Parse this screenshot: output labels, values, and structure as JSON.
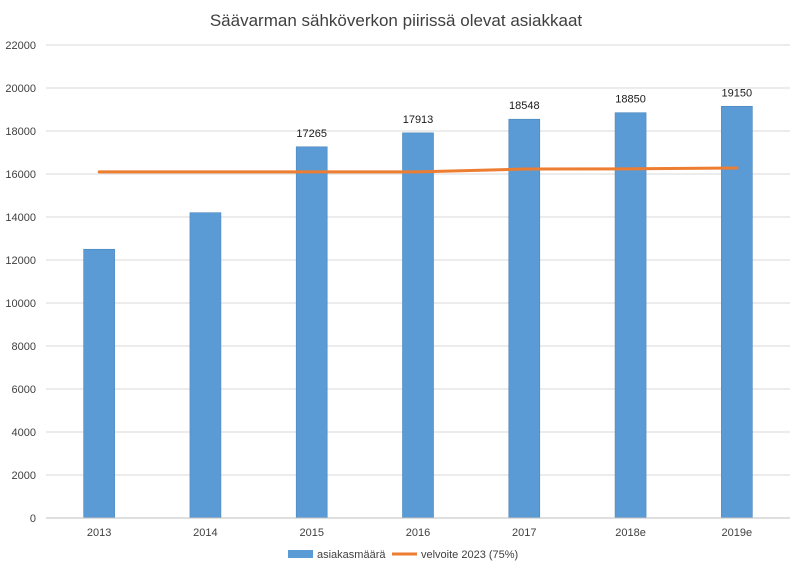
{
  "chart_data": {
    "type": "bar",
    "title": "Säävarman sähköverkon piirissä olevat asiakkaat",
    "categories": [
      "2013",
      "2014",
      "2015",
      "2016",
      "2017",
      "2018e",
      "2019e"
    ],
    "series": [
      {
        "name": "asiakasmäärä",
        "type": "bar",
        "color": "#5b9bd5",
        "values": [
          12500,
          14200,
          17265,
          17913,
          18548,
          18850,
          19150
        ],
        "data_labels": [
          "",
          "",
          "17265",
          "17913",
          "18548",
          "18850",
          "19150"
        ]
      },
      {
        "name": "velvoite 2023 (75%)",
        "type": "line",
        "color": "#ed7d31",
        "values": [
          16100,
          16100,
          16100,
          16100,
          16230,
          16240,
          16280
        ]
      }
    ],
    "ylim": [
      0,
      22000
    ],
    "yticks": [
      0,
      2000,
      4000,
      6000,
      8000,
      10000,
      12000,
      14000,
      16000,
      18000,
      20000,
      22000
    ],
    "grid": true,
    "legend_position": "bottom",
    "xlabel": "",
    "ylabel": ""
  }
}
